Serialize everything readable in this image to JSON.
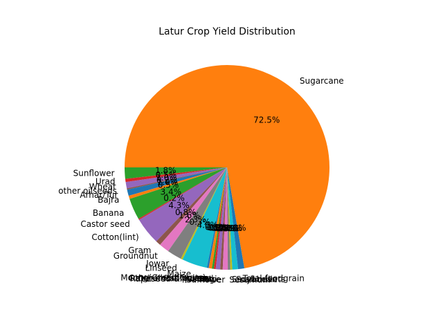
{
  "chart_data": {
    "type": "pie",
    "title": "Latur Crop Yield Distribution",
    "start_angle_deg": 180,
    "direction": "counterclockwise",
    "slices": [
      {
        "label": "Sunflower",
        "value": 1.8,
        "pct_label": "1.8%",
        "color": "#2ca02c"
      },
      {
        "label": "Urad",
        "value": 0.5,
        "pct_label": "0.5%",
        "color": "#d62728"
      },
      {
        "label": "Wheat",
        "value": 1.0,
        "pct_label": "1.0%",
        "color": "#9467bd"
      },
      {
        "label": "other oilseeds",
        "value": 0.2,
        "pct_label": "0.2%",
        "color": "#8c564b"
      },
      {
        "label": "Arhar/Tur",
        "value": 1.0,
        "pct_label": "1.0%",
        "color": "#1f77b4"
      },
      {
        "label": "Bajra",
        "value": 0.5,
        "pct_label": "0.5%",
        "color": "#ff7f0e"
      },
      {
        "label": "Banana",
        "value": 3.4,
        "pct_label": "3.4%",
        "color": "#2ca02c"
      },
      {
        "label": "Castor seed",
        "value": 0.2,
        "pct_label": "0.2%",
        "color": "#d62728"
      },
      {
        "label": "Cotton(lint)",
        "value": 4.3,
        "pct_label": "4.3%",
        "color": "#9467bd"
      },
      {
        "label": "Gram",
        "value": 0.8,
        "pct_label": "0.8%",
        "color": "#8c564b"
      },
      {
        "label": "Groundnut",
        "value": 1.6,
        "pct_label": "1.6%",
        "color": "#e377c2"
      },
      {
        "label": "Jowar",
        "value": 2.3,
        "pct_label": "2.3%",
        "color": "#7f7f7f"
      },
      {
        "label": "Linseed",
        "value": 0.3,
        "pct_label": "0.3%",
        "color": "#bcbd22"
      },
      {
        "label": "Maize",
        "value": 4.0,
        "pct_label": "4.0%",
        "color": "#17becf"
      },
      {
        "label": "Moong(Green Gram)",
        "value": 0.3,
        "pct_label": "0.3%",
        "color": "#1f77b4"
      },
      {
        "label": "Other Kharif pulses",
        "value": 0.5,
        "pct_label": "0.5%",
        "color": "#ff7f0e"
      },
      {
        "label": "Other Rabi pulses",
        "value": 0.3,
        "pct_label": "0.3%",
        "color": "#2ca02c"
      },
      {
        "label": "Rapeseed &Mustard",
        "value": 0.3,
        "pct_label": "0.3%",
        "color": "#d62728"
      },
      {
        "label": "Ragi",
        "value": 0.7,
        "pct_label": "0.7%",
        "color": "#9467bd"
      },
      {
        "label": "Rice",
        "value": 0.4,
        "pct_label": "0.4%",
        "color": "#8c564b"
      },
      {
        "label": "Safflower",
        "value": 0.8,
        "pct_label": "0.8%",
        "color": "#e377c2"
      },
      {
        "label": "Sesamum",
        "value": 0.4,
        "pct_label": "0.4%",
        "color": "#7f7f7f"
      },
      {
        "label": "Small millets",
        "value": 0.3,
        "pct_label": "0.3%",
        "color": "#bcbd22"
      },
      {
        "label": "Soyabean",
        "value": 0.9,
        "pct_label": "0.9%",
        "color": "#17becf"
      },
      {
        "label": "Total foodgrain",
        "value": 1.0,
        "pct_label": "1.0%",
        "color": "#1f77b4"
      },
      {
        "label": "Sugarcane",
        "value": 72.5,
        "pct_label": "72.5%",
        "color": "#ff7f0e"
      }
    ]
  }
}
